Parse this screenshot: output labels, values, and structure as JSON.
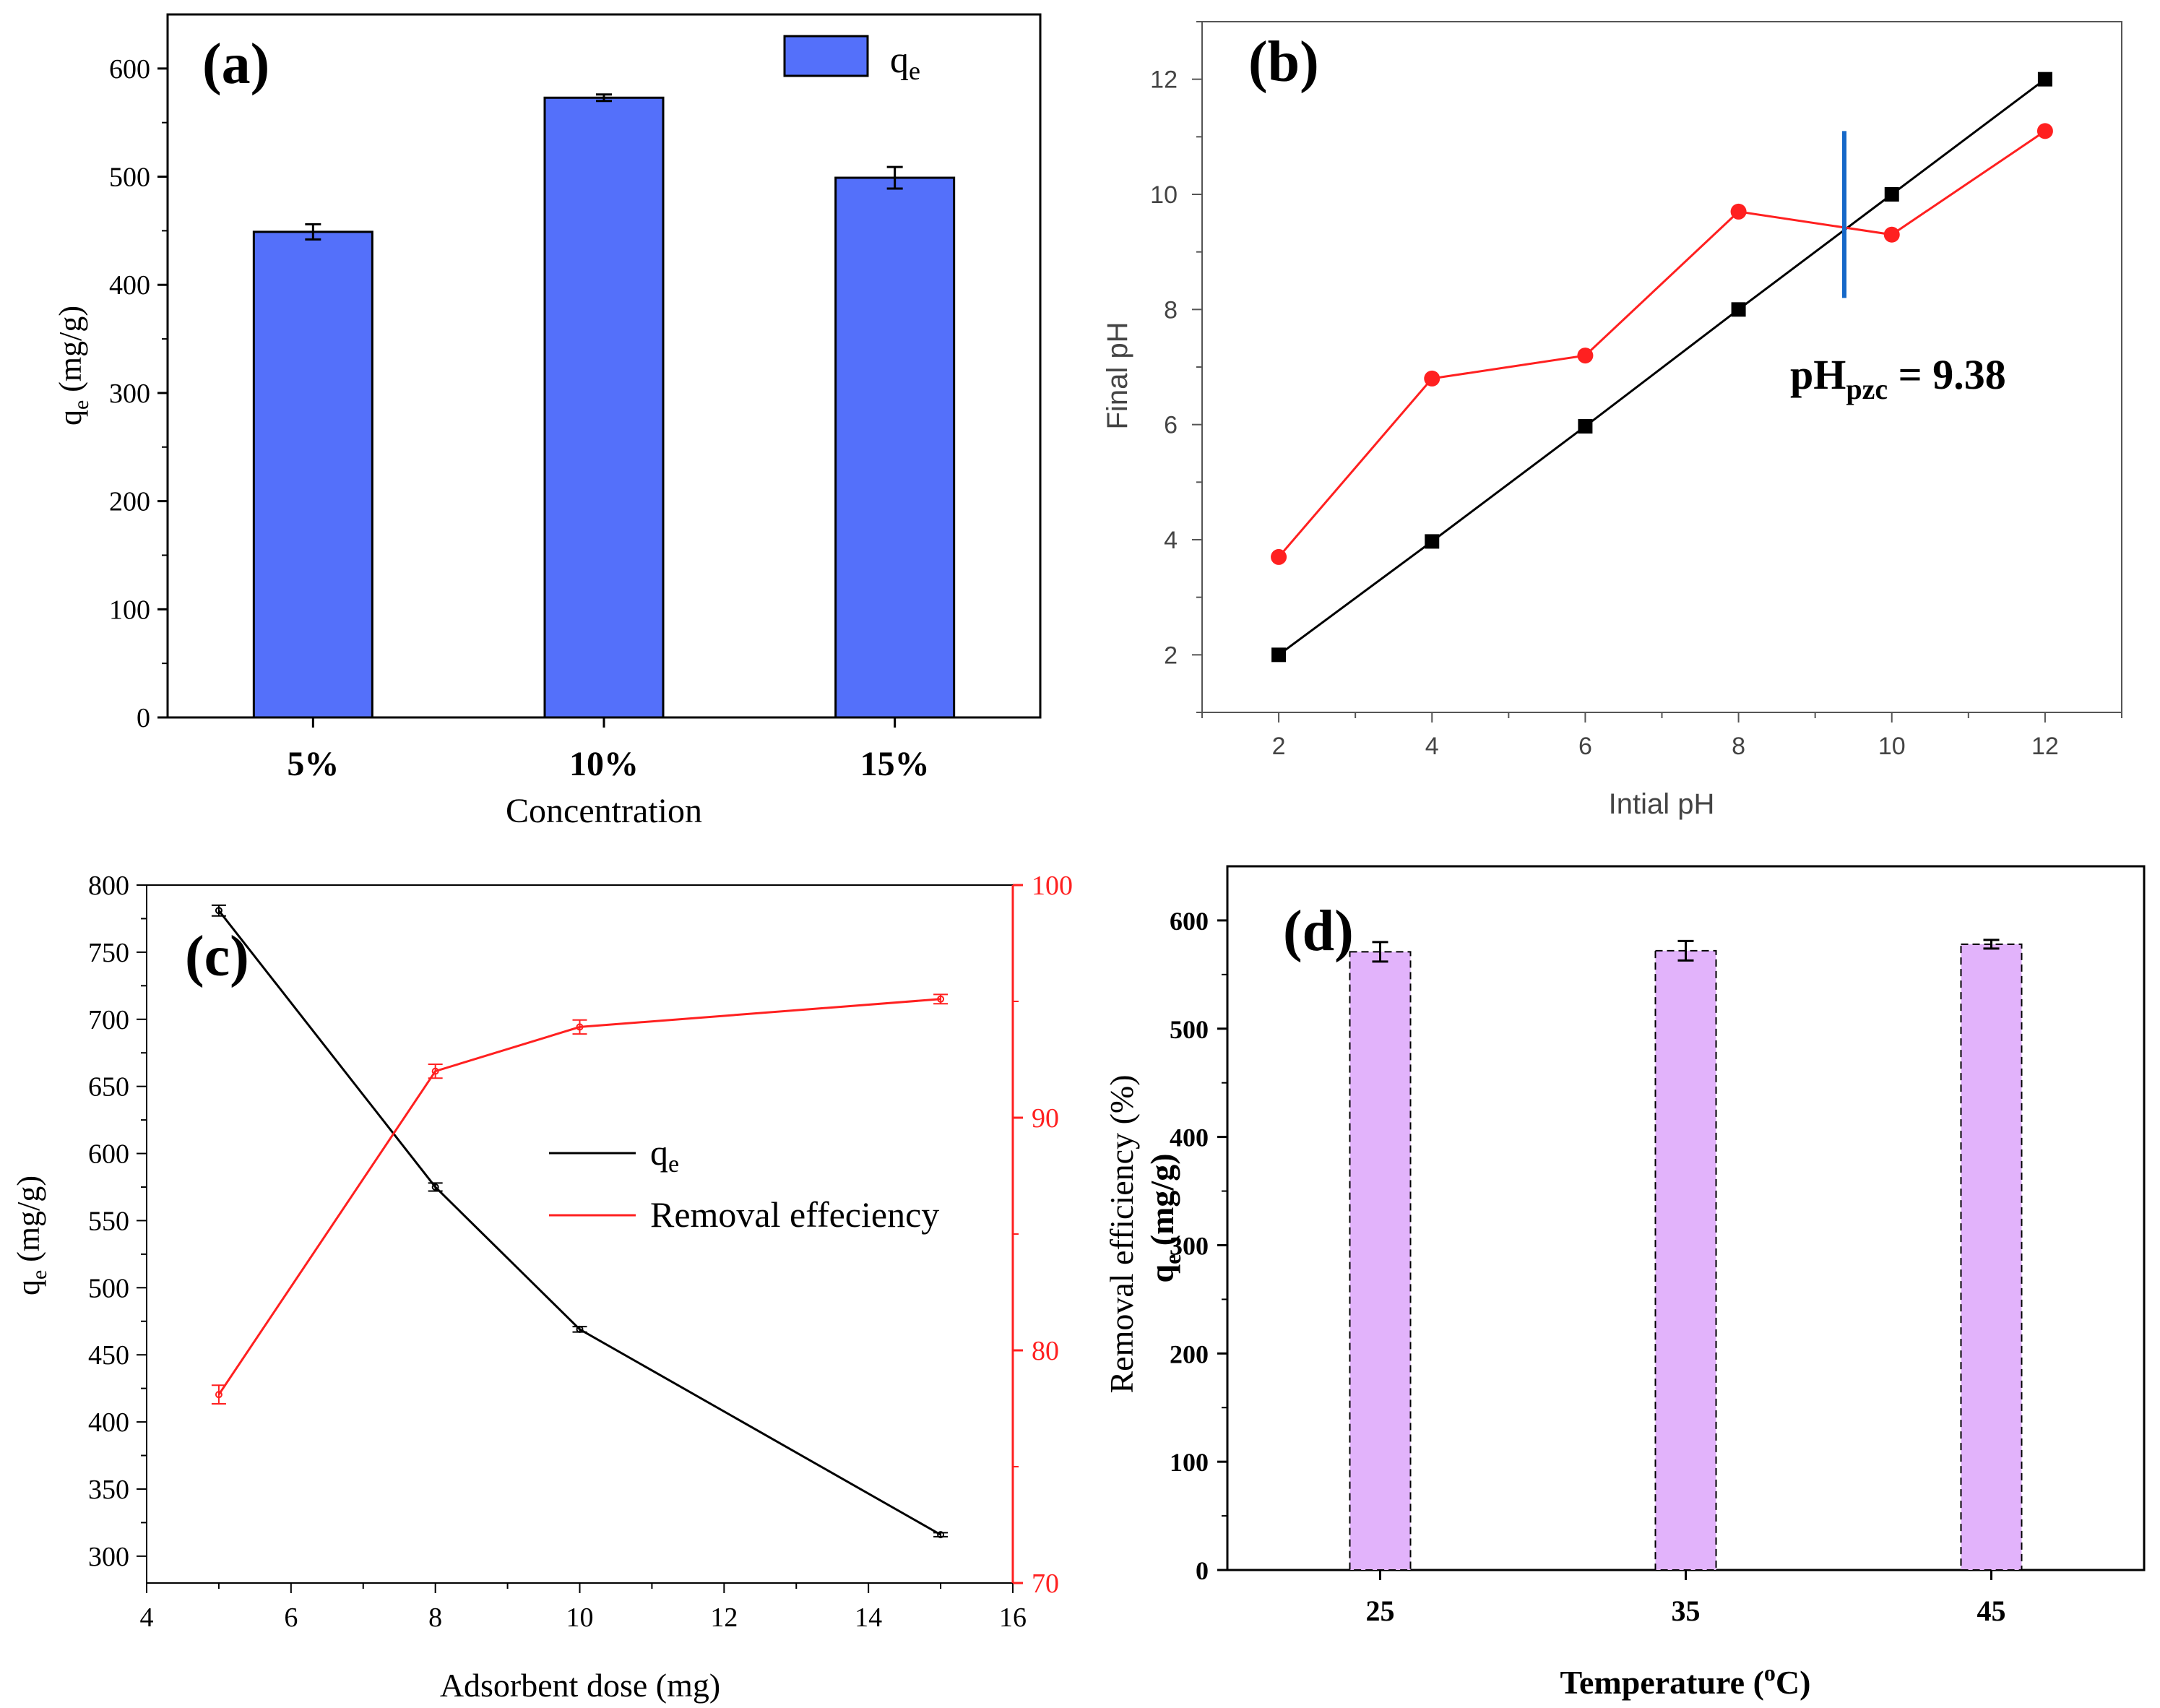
{
  "colors": {
    "bar_a": "#5470FA",
    "bar_d": "#E2B3FB",
    "red": "#FF2020",
    "black": "#000000",
    "pzc_marker": "#1668C8",
    "axis_b": "#555555",
    "text_b": "#444444"
  },
  "chart_data": [
    {
      "panel": "(a)",
      "type": "bar",
      "categories": [
        "5%",
        "10%",
        "15%"
      ],
      "series": [
        {
          "name": "q",
          "name_sub": "e",
          "values": [
            449,
            573,
            499
          ],
          "errors": [
            7,
            3,
            10
          ]
        }
      ],
      "xlabel": "Concentration",
      "ylabel": "q",
      "ylabel_sub": "e",
      "ylabel_unit": " (mg/g)",
      "ylim": [
        0,
        650
      ],
      "yticks": [
        0,
        100,
        200,
        300,
        400,
        500,
        600
      ],
      "legend": "top-right"
    },
    {
      "panel": "(b)",
      "type": "line",
      "series": [
        {
          "name": "",
          "x": [
            2,
            4,
            6,
            8,
            10,
            12
          ],
          "values": [
            2,
            3.97,
            5.97,
            8,
            10,
            12
          ]
        },
        {
          "name": "",
          "x": [
            2,
            4,
            6,
            8,
            10,
            12
          ],
          "values": [
            3.7,
            6.8,
            7.2,
            9.7,
            9.3,
            11.1
          ]
        }
      ],
      "annotation": {
        "main": "pH",
        "sub": "pzc",
        "rest": " = 9.38",
        "x": 9.38
      },
      "xlabel": "Intial pH",
      "ylabel": "Final pH",
      "xlim": [
        1,
        13
      ],
      "ylim": [
        1,
        13
      ],
      "xticks": [
        2,
        4,
        6,
        8,
        10,
        12
      ],
      "yticks": [
        2,
        4,
        6,
        8,
        10,
        12
      ]
    },
    {
      "panel": "(c)",
      "type": "line",
      "series": [
        {
          "name": "q",
          "name_sub": "e",
          "axis": "left",
          "x": [
            5,
            8,
            10,
            15
          ],
          "values": [
            781,
            575,
            469,
            316
          ],
          "errors": [
            4,
            3,
            2,
            1.5
          ]
        },
        {
          "name": "Removal effeciency",
          "axis": "right",
          "x": [
            5,
            8,
            10,
            15
          ],
          "values": [
            78.1,
            92,
            93.9,
            95.1
          ],
          "errors": [
            0.4,
            0.3,
            0.3,
            0.2
          ]
        }
      ],
      "xlabel": "Adsorbent dose (mg)",
      "ylabel": "q",
      "ylabel_sub": "e",
      "ylabel_unit": " (mg/g)",
      "y2label": "Removal efficiency (%)",
      "xlim": [
        4,
        16
      ],
      "ylim": [
        280,
        800
      ],
      "y2lim": [
        70,
        100
      ],
      "xticks": [
        4,
        6,
        8,
        10,
        12,
        14,
        16
      ],
      "yticks": [
        300,
        350,
        400,
        450,
        500,
        550,
        600,
        650,
        700,
        750,
        800
      ],
      "y2ticks": [
        70,
        80,
        90,
        100
      ],
      "legend": "center"
    },
    {
      "panel": "(d)",
      "type": "bar",
      "categories": [
        "25",
        "35",
        "45"
      ],
      "series": [
        {
          "name": "",
          "values": [
            571,
            572,
            578
          ],
          "errors": [
            9,
            9,
            4
          ]
        }
      ],
      "xlabel": "Temperature (",
      "xlabel_sup": "o",
      "xlabel_end": "C)",
      "ylabel": "q",
      "ylabel_sub": "e",
      "ylabel_unit": " (mg/g)",
      "ylim": [
        0,
        650
      ],
      "yticks": [
        0,
        100,
        200,
        300,
        400,
        500,
        600
      ]
    }
  ]
}
